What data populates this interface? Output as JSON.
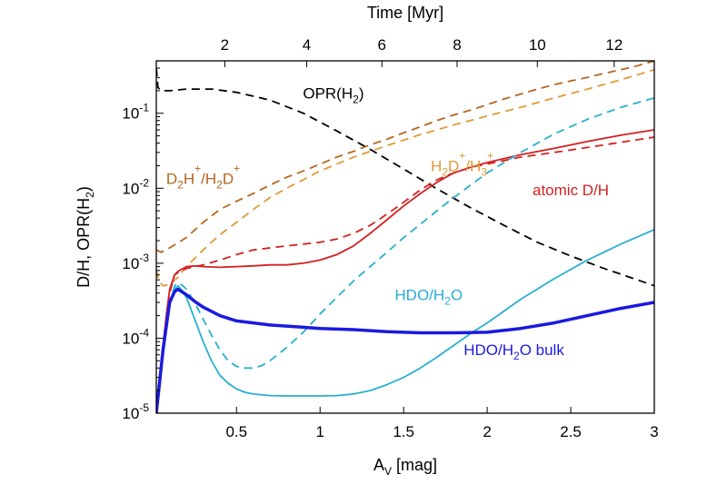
{
  "chart_data": {
    "type": "line",
    "top_axis": {
      "label": "Time [Myr]",
      "tick_labels": [
        "2",
        "4",
        "6",
        "8",
        "10",
        "12"
      ],
      "ticks": [
        {
          "label": "2",
          "av": 0.43
        },
        {
          "label": "4",
          "av": 0.92
        },
        {
          "label": "6",
          "av": 1.37
        },
        {
          "label": "8",
          "av": 1.82
        },
        {
          "label": "10",
          "av": 2.3
        },
        {
          "label": "12",
          "av": 2.76
        }
      ]
    },
    "x_axis": {
      "label": "A",
      "label_sub": "V",
      "label_tail": " [mag]",
      "range": [
        0.02,
        3.0
      ],
      "ticks": [
        0.5,
        1,
        1.5,
        2,
        2.5,
        3
      ],
      "tick_labels": [
        "0.5",
        "1",
        "1.5",
        "2",
        "2.5",
        "3"
      ]
    },
    "y_axis": {
      "label": "D/H, OPR(H",
      "label_sub": "2",
      "label_tail": ")",
      "scale": "log",
      "range": [
        1e-05,
        0.5
      ],
      "ticks": [
        1e-05,
        0.0001,
        0.001,
        0.01,
        0.1
      ],
      "tick_labels": [
        {
          "base": "10",
          "exp": "-5"
        },
        {
          "base": "10",
          "exp": "-4"
        },
        {
          "base": "10",
          "exp": "-3"
        },
        {
          "base": "10",
          "exp": "-2"
        },
        {
          "base": "10",
          "exp": "-1"
        }
      ]
    },
    "grid": false,
    "series": [
      {
        "name": "OPR(H2)",
        "color": "#000000",
        "dash": true,
        "width": 1.8,
        "x": [
          0.02,
          0.025,
          0.03,
          0.05,
          0.1,
          0.2,
          0.35,
          0.5,
          0.7,
          0.9,
          1.1,
          1.3,
          1.5,
          1.7,
          1.9,
          2.1,
          2.3,
          2.5,
          2.7,
          2.9,
          3.0
        ],
        "y": [
          0.4,
          0.3,
          0.22,
          0.2,
          0.2,
          0.21,
          0.21,
          0.19,
          0.15,
          0.1,
          0.058,
          0.033,
          0.018,
          0.0098,
          0.0055,
          0.0032,
          0.0019,
          0.00125,
          0.00085,
          0.0006,
          0.0005
        ]
      },
      {
        "name": "D2H+/H2D+",
        "color": "#b5651d",
        "dash": true,
        "width": 1.8,
        "x": [
          0.02,
          0.05,
          0.1,
          0.2,
          0.3,
          0.4,
          0.5,
          0.6,
          0.7,
          0.8,
          0.9,
          1.0,
          1.1,
          1.2,
          1.3,
          1.4,
          1.5,
          1.6,
          1.7,
          1.8,
          1.9,
          2.0,
          2.1,
          2.2,
          2.3,
          2.4,
          2.5,
          2.6,
          2.7,
          2.8,
          2.9,
          3.0
        ],
        "y": [
          0.0015,
          0.0014,
          0.0016,
          0.0022,
          0.0035,
          0.0052,
          0.0067,
          0.0085,
          0.011,
          0.014,
          0.017,
          0.021,
          0.026,
          0.031,
          0.038,
          0.045,
          0.055,
          0.066,
          0.08,
          0.095,
          0.11,
          0.13,
          0.155,
          0.18,
          0.21,
          0.24,
          0.27,
          0.3,
          0.34,
          0.38,
          0.43,
          0.5
        ]
      },
      {
        "name": "H2D+/H3+",
        "color": "#e09a35",
        "dash": true,
        "width": 1.8,
        "x": [
          0.02,
          0.04,
          0.06,
          0.1,
          0.15,
          0.2,
          0.3,
          0.4,
          0.5,
          0.6,
          0.7,
          0.8,
          0.9,
          1.0,
          1.1,
          1.2,
          1.3,
          1.4,
          1.5,
          1.6,
          1.7,
          1.8,
          1.9,
          2.0,
          2.2,
          2.4,
          2.6,
          2.8,
          3.0
        ],
        "y": [
          0.0008,
          0.00055,
          0.0005,
          0.00052,
          0.00065,
          0.0009,
          0.0015,
          0.0024,
          0.0035,
          0.0052,
          0.0075,
          0.01,
          0.013,
          0.017,
          0.021,
          0.026,
          0.031,
          0.037,
          0.044,
          0.052,
          0.06,
          0.07,
          0.08,
          0.092,
          0.12,
          0.16,
          0.21,
          0.28,
          0.38
        ]
      },
      {
        "name": "atomic D/H (dashed)",
        "color": "#d42020",
        "dash": true,
        "width": 1.8,
        "x": [
          0.02,
          0.05,
          0.08,
          0.1,
          0.13,
          0.15,
          0.2,
          0.3,
          0.4,
          0.5,
          0.6,
          0.7,
          0.8,
          0.9,
          1.0,
          1.1,
          1.2,
          1.3,
          1.4,
          1.5,
          1.6,
          1.7,
          1.8,
          1.9,
          2.0,
          2.2,
          2.4,
          2.6,
          2.8,
          3.0
        ],
        "y": [
          1e-05,
          5e-05,
          0.00018,
          0.0004,
          0.0007,
          0.00075,
          0.00085,
          0.00095,
          0.0011,
          0.0013,
          0.0015,
          0.0016,
          0.0017,
          0.0018,
          0.0019,
          0.0021,
          0.0025,
          0.0032,
          0.0045,
          0.0065,
          0.0095,
          0.013,
          0.016,
          0.019,
          0.021,
          0.026,
          0.03,
          0.035,
          0.041,
          0.048
        ]
      },
      {
        "name": "atomic D/H",
        "color": "#d42020",
        "dash": false,
        "width": 1.8,
        "x": [
          0.02,
          0.05,
          0.08,
          0.1,
          0.13,
          0.15,
          0.2,
          0.25,
          0.3,
          0.4,
          0.5,
          0.6,
          0.7,
          0.8,
          0.9,
          1.0,
          1.1,
          1.2,
          1.3,
          1.4,
          1.5,
          1.6,
          1.7,
          1.8,
          1.9,
          2.0,
          2.2,
          2.4,
          2.6,
          2.8,
          3.0
        ],
        "y": [
          1e-05,
          5e-05,
          0.0002,
          0.00045,
          0.0007,
          0.00078,
          0.0009,
          0.00092,
          0.0009,
          0.00088,
          0.0009,
          0.00092,
          0.00095,
          0.00095,
          0.001,
          0.0011,
          0.0013,
          0.0017,
          0.0025,
          0.0038,
          0.0058,
          0.0085,
          0.012,
          0.016,
          0.019,
          0.022,
          0.028,
          0.034,
          0.042,
          0.051,
          0.06
        ]
      },
      {
        "name": "HDO/H2O (dashed)",
        "color": "#28afd0",
        "dash": true,
        "width": 1.8,
        "x": [
          0.02,
          0.06,
          0.1,
          0.13,
          0.15,
          0.18,
          0.2,
          0.25,
          0.3,
          0.35,
          0.4,
          0.45,
          0.5,
          0.55,
          0.6,
          0.65,
          0.7,
          0.8,
          0.9,
          1.0,
          1.1,
          1.2,
          1.3,
          1.4,
          1.5,
          1.6,
          1.7,
          1.8,
          1.9,
          2.0,
          2.2,
          2.4,
          2.6,
          2.8,
          3.0
        ],
        "y": [
          1e-05,
          6e-05,
          0.0003,
          0.0005,
          0.00055,
          0.0005,
          0.00045,
          0.0003,
          0.00018,
          0.00011,
          7e-05,
          5e-05,
          4.2e-05,
          4e-05,
          4e-05,
          4.3e-05,
          5e-05,
          7.5e-05,
          0.00012,
          0.00021,
          0.00035,
          0.00058,
          0.0009,
          0.0014,
          0.0022,
          0.0033,
          0.005,
          0.0075,
          0.011,
          0.016,
          0.03,
          0.053,
          0.083,
          0.12,
          0.16
        ]
      },
      {
        "name": "HDO/H2O",
        "color": "#28afd0",
        "dash": false,
        "width": 1.8,
        "x": [
          0.02,
          0.06,
          0.1,
          0.13,
          0.15,
          0.18,
          0.2,
          0.25,
          0.3,
          0.35,
          0.4,
          0.45,
          0.5,
          0.55,
          0.6,
          0.7,
          0.8,
          0.9,
          1.0,
          1.1,
          1.2,
          1.3,
          1.4,
          1.5,
          1.6,
          1.7,
          1.8,
          1.9,
          2.0,
          2.2,
          2.4,
          2.6,
          2.8,
          3.0
        ],
        "y": [
          1e-05,
          6e-05,
          0.0003,
          0.00045,
          0.0005,
          0.00042,
          0.00035,
          0.00018,
          9e-05,
          5e-05,
          3.2e-05,
          2.5e-05,
          2.1e-05,
          1.9e-05,
          1.8e-05,
          1.72e-05,
          1.7e-05,
          1.7e-05,
          1.7e-05,
          1.72e-05,
          1.8e-05,
          2e-05,
          2.4e-05,
          3e-05,
          4e-05,
          5.6e-05,
          8e-05,
          0.000115,
          0.00016,
          0.00033,
          0.00062,
          0.0011,
          0.0018,
          0.0028
        ]
      },
      {
        "name": "HDO/H2O bulk",
        "color": "#1a1adf",
        "dash": false,
        "width": 3.5,
        "x": [
          0.02,
          0.06,
          0.1,
          0.13,
          0.15,
          0.2,
          0.25,
          0.3,
          0.4,
          0.5,
          0.6,
          0.7,
          0.8,
          0.9,
          1.0,
          1.2,
          1.4,
          1.6,
          1.8,
          2.0,
          2.2,
          2.4,
          2.6,
          2.8,
          3.0
        ],
        "y": [
          1e-05,
          7e-05,
          0.0003,
          0.00042,
          0.00045,
          0.00038,
          0.00031,
          0.00026,
          0.0002,
          0.00017,
          0.00016,
          0.00015,
          0.000145,
          0.00014,
          0.000135,
          0.00013,
          0.000122,
          0.000118,
          0.000118,
          0.00012,
          0.000135,
          0.00016,
          0.0002,
          0.00025,
          0.0003
        ]
      }
    ],
    "annotations": [
      {
        "id": "opr",
        "color": "#000000",
        "parts": [
          {
            "t": "OPR(H"
          },
          {
            "t": "2",
            "sub": true
          },
          {
            "t": ")"
          }
        ],
        "x": 1.08,
        "y": 0.185
      },
      {
        "id": "d2h",
        "color": "#b5651d",
        "parts": [
          {
            "t": "D"
          },
          {
            "t": "2",
            "sub": true
          },
          {
            "t": "H"
          },
          {
            "t": "+",
            "sup": true
          },
          {
            "t": "/H"
          },
          {
            "t": "2",
            "sub": true
          },
          {
            "t": "D"
          },
          {
            "t": "+",
            "sup": true
          }
        ],
        "x": 0.3,
        "y": 0.0135
      },
      {
        "id": "h2d",
        "color": "#e09a35",
        "parts": [
          {
            "t": "H"
          },
          {
            "t": "2",
            "sub": true
          },
          {
            "t": "D"
          },
          {
            "t": "+",
            "sup": true
          },
          {
            "t": "/H"
          },
          {
            "t": "3",
            "sub": true
          },
          {
            "t": "+",
            "sup": true
          }
        ],
        "x": 1.85,
        "y": 0.02
      },
      {
        "id": "atomic",
        "color": "#d42020",
        "parts": [
          {
            "t": "atomic D/H"
          }
        ],
        "x": 2.5,
        "y": 0.0095
      },
      {
        "id": "hdo",
        "color": "#28afd0",
        "parts": [
          {
            "t": "HDO/H"
          },
          {
            "t": "2",
            "sub": true
          },
          {
            "t": "O"
          }
        ],
        "x": 1.65,
        "y": 0.00038
      },
      {
        "id": "bulk",
        "color": "#1a1adf",
        "parts": [
          {
            "t": "HDO/H"
          },
          {
            "t": "2",
            "sub": true
          },
          {
            "t": "O bulk"
          }
        ],
        "x": 2.16,
        "y": 7e-05
      }
    ]
  }
}
